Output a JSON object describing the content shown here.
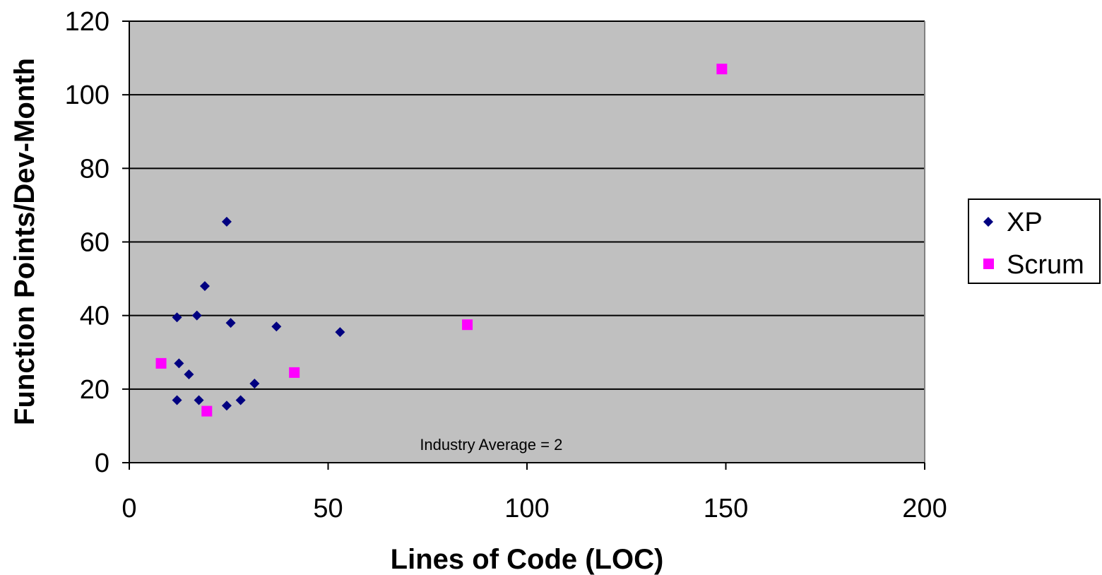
{
  "colors": {
    "plot_background": "#c0c0c0",
    "xp_marker": "#000080",
    "scrum_marker": "#ff00ff",
    "gridline": "#000000"
  },
  "chart_data": {
    "type": "scatter",
    "xlabel": "Lines of Code (LOC)",
    "ylabel": "Function Points/Dev-Month",
    "xlim": [
      0,
      200
    ],
    "ylim": [
      0,
      120
    ],
    "x_ticks": [
      0,
      50,
      100,
      150,
      200
    ],
    "y_ticks": [
      0,
      20,
      40,
      60,
      80,
      100,
      120
    ],
    "grid": "horizontal",
    "legend_position": "right",
    "annotation": {
      "text": "Industry Average = 2",
      "x": 91,
      "y": 5
    },
    "series": [
      {
        "name": "XP",
        "marker": "diamond",
        "points": [
          {
            "x": 12,
            "y": 39.5
          },
          {
            "x": 12.5,
            "y": 27
          },
          {
            "x": 12,
            "y": 17
          },
          {
            "x": 15,
            "y": 24
          },
          {
            "x": 17,
            "y": 40
          },
          {
            "x": 17.5,
            "y": 17
          },
          {
            "x": 19,
            "y": 48
          },
          {
            "x": 24.5,
            "y": 65.5
          },
          {
            "x": 25.5,
            "y": 38
          },
          {
            "x": 24.5,
            "y": 15.5
          },
          {
            "x": 28,
            "y": 17
          },
          {
            "x": 31.5,
            "y": 21.5
          },
          {
            "x": 37,
            "y": 37
          },
          {
            "x": 53,
            "y": 35.5
          }
        ]
      },
      {
        "name": "Scrum",
        "marker": "square",
        "points": [
          {
            "x": 8,
            "y": 27
          },
          {
            "x": 19.5,
            "y": 14
          },
          {
            "x": 41.5,
            "y": 24.5
          },
          {
            "x": 85,
            "y": 37.5
          },
          {
            "x": 149,
            "y": 107
          }
        ]
      }
    ]
  }
}
